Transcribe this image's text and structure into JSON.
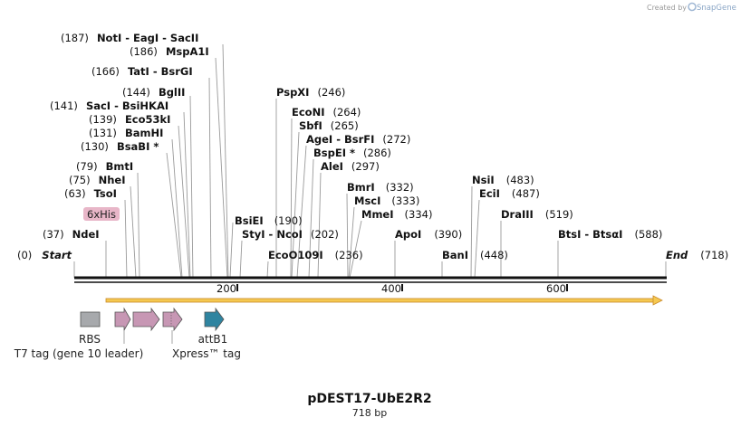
{
  "branding": {
    "created_by": "Created by",
    "brand": "SnapGene"
  },
  "plasmid": {
    "name": "pDEST17-UbE2R2",
    "length_text": "718 bp"
  },
  "ends": {
    "start_pos": "(0)",
    "start": "Start",
    "end": "End",
    "end_pos": "(718)"
  },
  "axis": {
    "ticks": [
      "200",
      "400",
      "600"
    ]
  },
  "sites": [
    {
      "pos": "(187)",
      "name": "NotI  -  EagI  -  SacII"
    },
    {
      "pos": "(186)",
      "name": "MspA1I"
    },
    {
      "pos": "(166)",
      "name": "TatI  -  BsrGI"
    },
    {
      "pos": "(144)",
      "name": "BglII"
    },
    {
      "pos": "(141)",
      "name": "SacI  -  BsiHKAI"
    },
    {
      "pos": "(139)",
      "name": "Eco53kI"
    },
    {
      "pos": "(131)",
      "name": "BamHI"
    },
    {
      "pos": "(130)",
      "name": "BsaBI *"
    },
    {
      "pos": "(79)",
      "name": "BmtI"
    },
    {
      "pos": "(75)",
      "name": "NheI"
    },
    {
      "pos": "(63)",
      "name": "TsoI"
    },
    {
      "pos": "(37)",
      "name": "NdeI"
    },
    {
      "pos": "(246)",
      "name": "PspXI"
    },
    {
      "pos": "(264)",
      "name": "EcoNI"
    },
    {
      "pos": "(265)",
      "name": "SbfI"
    },
    {
      "pos": "(272)",
      "name": "AgeI  -  BsrFI"
    },
    {
      "pos": "(286)",
      "name": "BspEI *"
    },
    {
      "pos": "(297)",
      "name": "AleI"
    },
    {
      "pos": "(190)",
      "name": "BsiEI"
    },
    {
      "pos": "(202)",
      "name": "StyI  -  NcoI"
    },
    {
      "pos": "(236)",
      "name": "EcoO109I"
    },
    {
      "pos": "(332)",
      "name": "BmrI"
    },
    {
      "pos": "(333)",
      "name": "MscI"
    },
    {
      "pos": "(334)",
      "name": "MmeI"
    },
    {
      "pos": "(390)",
      "name": "ApoI"
    },
    {
      "pos": "(448)",
      "name": "BanI"
    },
    {
      "pos": "(483)",
      "name": "NsiI"
    },
    {
      "pos": "(487)",
      "name": "EciI"
    },
    {
      "pos": "(519)",
      "name": "DraIII"
    },
    {
      "pos": "(588)",
      "name": "BtsI  -  BtsαI"
    }
  ],
  "features": {
    "his_tag": "6xHis",
    "rbs": "RBS",
    "t7": "T7 tag (gene 10 leader)",
    "xpress": "Xpress™ tag",
    "attb1": "attB1"
  },
  "colors": {
    "his": "#e8b6c8",
    "tag_arrow": "#c797b4",
    "attb": "#2f84a0",
    "rbs": "#a7a9ac",
    "orf": "#f5c850",
    "orf_stroke": "#c98a2a"
  }
}
